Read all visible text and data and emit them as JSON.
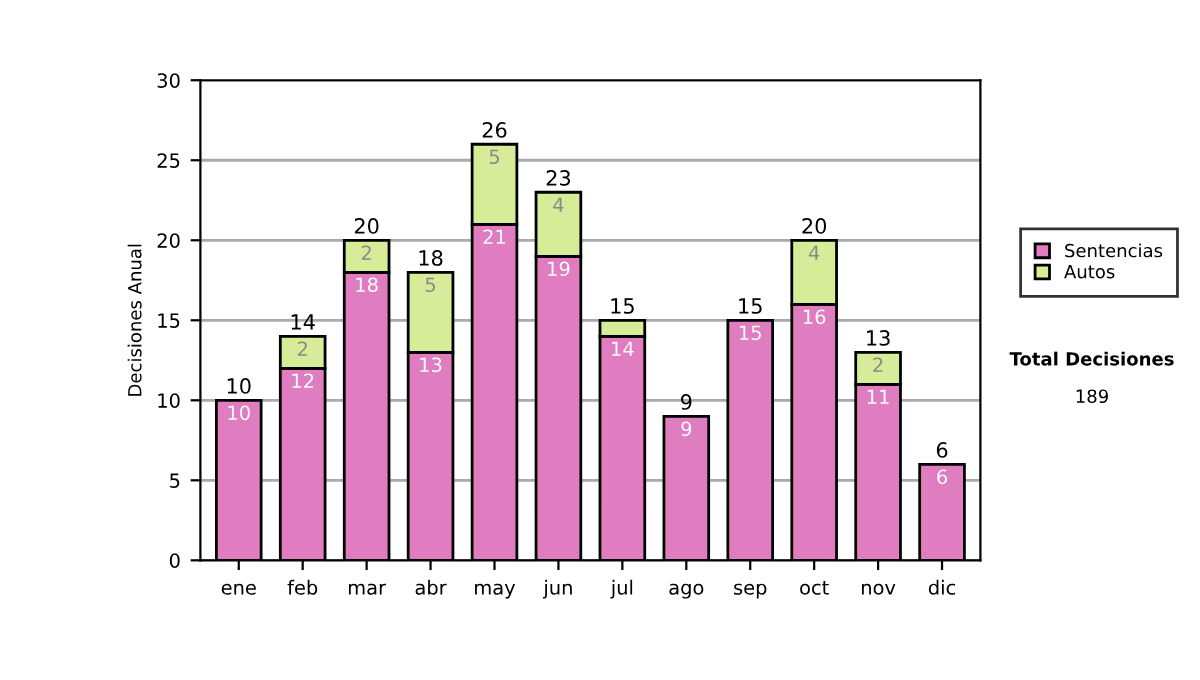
{
  "chart_data": {
    "type": "bar",
    "stacked": true,
    "ylabel": "Decisiones Anual",
    "categories": [
      "ene",
      "feb",
      "mar",
      "abr",
      "may",
      "jun",
      "jul",
      "ago",
      "sep",
      "oct",
      "nov",
      "dic"
    ],
    "series": [
      {
        "name": "Sentencias",
        "color": "#e07cc0",
        "values": [
          10,
          12,
          18,
          13,
          21,
          19,
          14,
          9,
          15,
          16,
          11,
          6
        ],
        "value_labels": [
          "10",
          "12",
          "18",
          "13",
          "21",
          "19",
          "14",
          "9",
          "15",
          "16",
          "11",
          "6"
        ]
      },
      {
        "name": "Autos",
        "color": "#d6ec98",
        "values": [
          0,
          2,
          2,
          5,
          5,
          4,
          1,
          0,
          0,
          4,
          2,
          0
        ],
        "value_labels": [
          null,
          "2",
          "2",
          "5",
          "5",
          "4",
          null,
          null,
          null,
          "4",
          "2",
          null
        ]
      }
    ],
    "totals": [
      "10",
      "14",
      "20",
      "18",
      "26",
      "23",
      "15",
      "9",
      "15",
      "20",
      "13",
      "6"
    ],
    "ylim": [
      0,
      30
    ],
    "yticks": [
      0,
      5,
      10,
      15,
      20,
      25,
      30
    ],
    "grid": "y",
    "legend": "right",
    "annotations": [
      "Total Decisiones",
      "189"
    ]
  }
}
